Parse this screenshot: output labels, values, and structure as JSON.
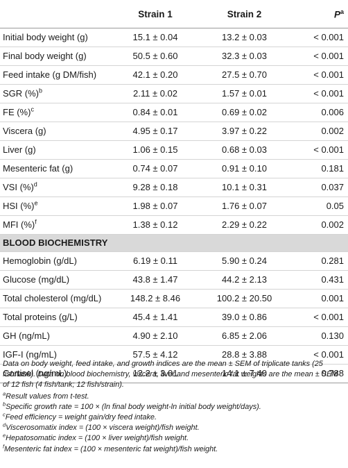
{
  "table": {
    "headers": {
      "label": "",
      "strain1": "Strain 1",
      "strain2": "Strain 2",
      "p": "P",
      "p_sup": "a"
    },
    "rows": [
      {
        "label": "Initial body weight (g)",
        "sup": "",
        "s1": "15.1 ± 0.04",
        "s2": "13.2 ± 0.03",
        "p": "< 0.001"
      },
      {
        "label": "Final body weight (g)",
        "sup": "",
        "s1": "50.5 ± 0.60",
        "s2": "32.3 ± 0.03",
        "p": "< 0.001"
      },
      {
        "label": "Feed intake (g DM/fish)",
        "sup": "",
        "s1": "42.1 ± 0.20",
        "s2": "27.5 ± 0.70",
        "p": "< 0.001"
      },
      {
        "label": "SGR (%)",
        "sup": "b",
        "s1": "2.11 ± 0.02",
        "s2": "1.57 ± 0.01",
        "p": "< 0.001"
      },
      {
        "label": "FE (%)",
        "sup": "c",
        "s1": "0.84 ± 0.01",
        "s2": "0.69 ± 0.02",
        "p": "0.006"
      },
      {
        "label": "Viscera (g)",
        "sup": "",
        "s1": "4.95 ± 0.17",
        "s2": "3.97 ± 0.22",
        "p": "0.002"
      },
      {
        "label": "Liver (g)",
        "sup": "",
        "s1": "1.06 ± 0.15",
        "s2": "0.68 ± 0.03",
        "p": "< 0.001"
      },
      {
        "label": "Mesenteric fat (g)",
        "sup": "",
        "s1": "0.74 ± 0.07",
        "s2": "0.91 ± 0.10",
        "p": "0.181"
      },
      {
        "label": "VSI (%)",
        "sup": "d",
        "s1": "9.28 ± 0.18",
        "s2": "10.1 ± 0.31",
        "p": "0.037"
      },
      {
        "label": "HSI (%)",
        "sup": "e",
        "s1": "1.98 ± 0.07",
        "s2": "1.76 ± 0.07",
        "p": "0.05"
      },
      {
        "label": "MFI (%)",
        "sup": "f",
        "s1": "1.38 ± 0.12",
        "s2": "2.29 ± 0.22",
        "p": "0.002"
      }
    ],
    "section_title": "BLOOD BIOCHEMISTRY",
    "blood_rows": [
      {
        "label": "Hemoglobin (g/dL)",
        "s1": "6.19 ± 0.11",
        "s2": "5.90 ± 0.24",
        "p": "0.281"
      },
      {
        "label": "Glucose (mg/dL)",
        "s1": "43.8 ± 1.47",
        "s2": "44.2 ± 2.13",
        "p": "0.431"
      },
      {
        "label": "Total cholesterol (mg/dL)",
        "s1": "148.2 ± 8.46",
        "s2": "100.2 ± 20.50",
        "p": "0.001"
      },
      {
        "label": "Total proteins (g/L)",
        "s1": "45.4 ± 1.41",
        "s2": "39.0 ± 0.86",
        "p": "< 0.001"
      },
      {
        "label": "GH (ng/mL)",
        "s1": "4.90 ± 2.10",
        "s2": "6.85 ± 2.06",
        "p": "0.130"
      },
      {
        "label": "IGF-I (ng/mL)",
        "s1": "57.5 ± 4.12",
        "s2": "28.8 ± 3.88",
        "p": "< 0.001"
      },
      {
        "label": "Cortisol (ng/mL)",
        "s1": "12.2 ± 3.01",
        "s2": "14.1 ± 7.40",
        "p": "0.788"
      }
    ]
  },
  "notes": {
    "body": "Data on body weight, feed intake, and growth indices are the mean ± SEM of triplicate tanks (25 fish/tank). Data on blood biochemistry, viscera, liver and mesenteric fat weights are the mean ± SEM of 12 fish (4 fish/tank; 12 fish/strain).",
    "footnotes": [
      {
        "mark": "a",
        "text": "Result values from t-test."
      },
      {
        "mark": "b",
        "text": "Specific growth rate = 100 × (ln final body weight-ln initial body weight/days)."
      },
      {
        "mark": "c",
        "text": "Feed efficiency = weight gain/dry feed intake."
      },
      {
        "mark": "d",
        "text": "Viscerosomatix index = (100 × viscera weight)/fish weight."
      },
      {
        "mark": "e",
        "text": "Hepatosomatic index = (100 × liver weight)/fish weight."
      },
      {
        "mark": "f",
        "text": "Mesenteric fat index = (100 × mesenteric fat weight)/fish weight."
      }
    ]
  },
  "colors": {
    "section_bg": "#d9d9d9",
    "rule": "#d4d4d4",
    "text": "#1a1a1a"
  }
}
